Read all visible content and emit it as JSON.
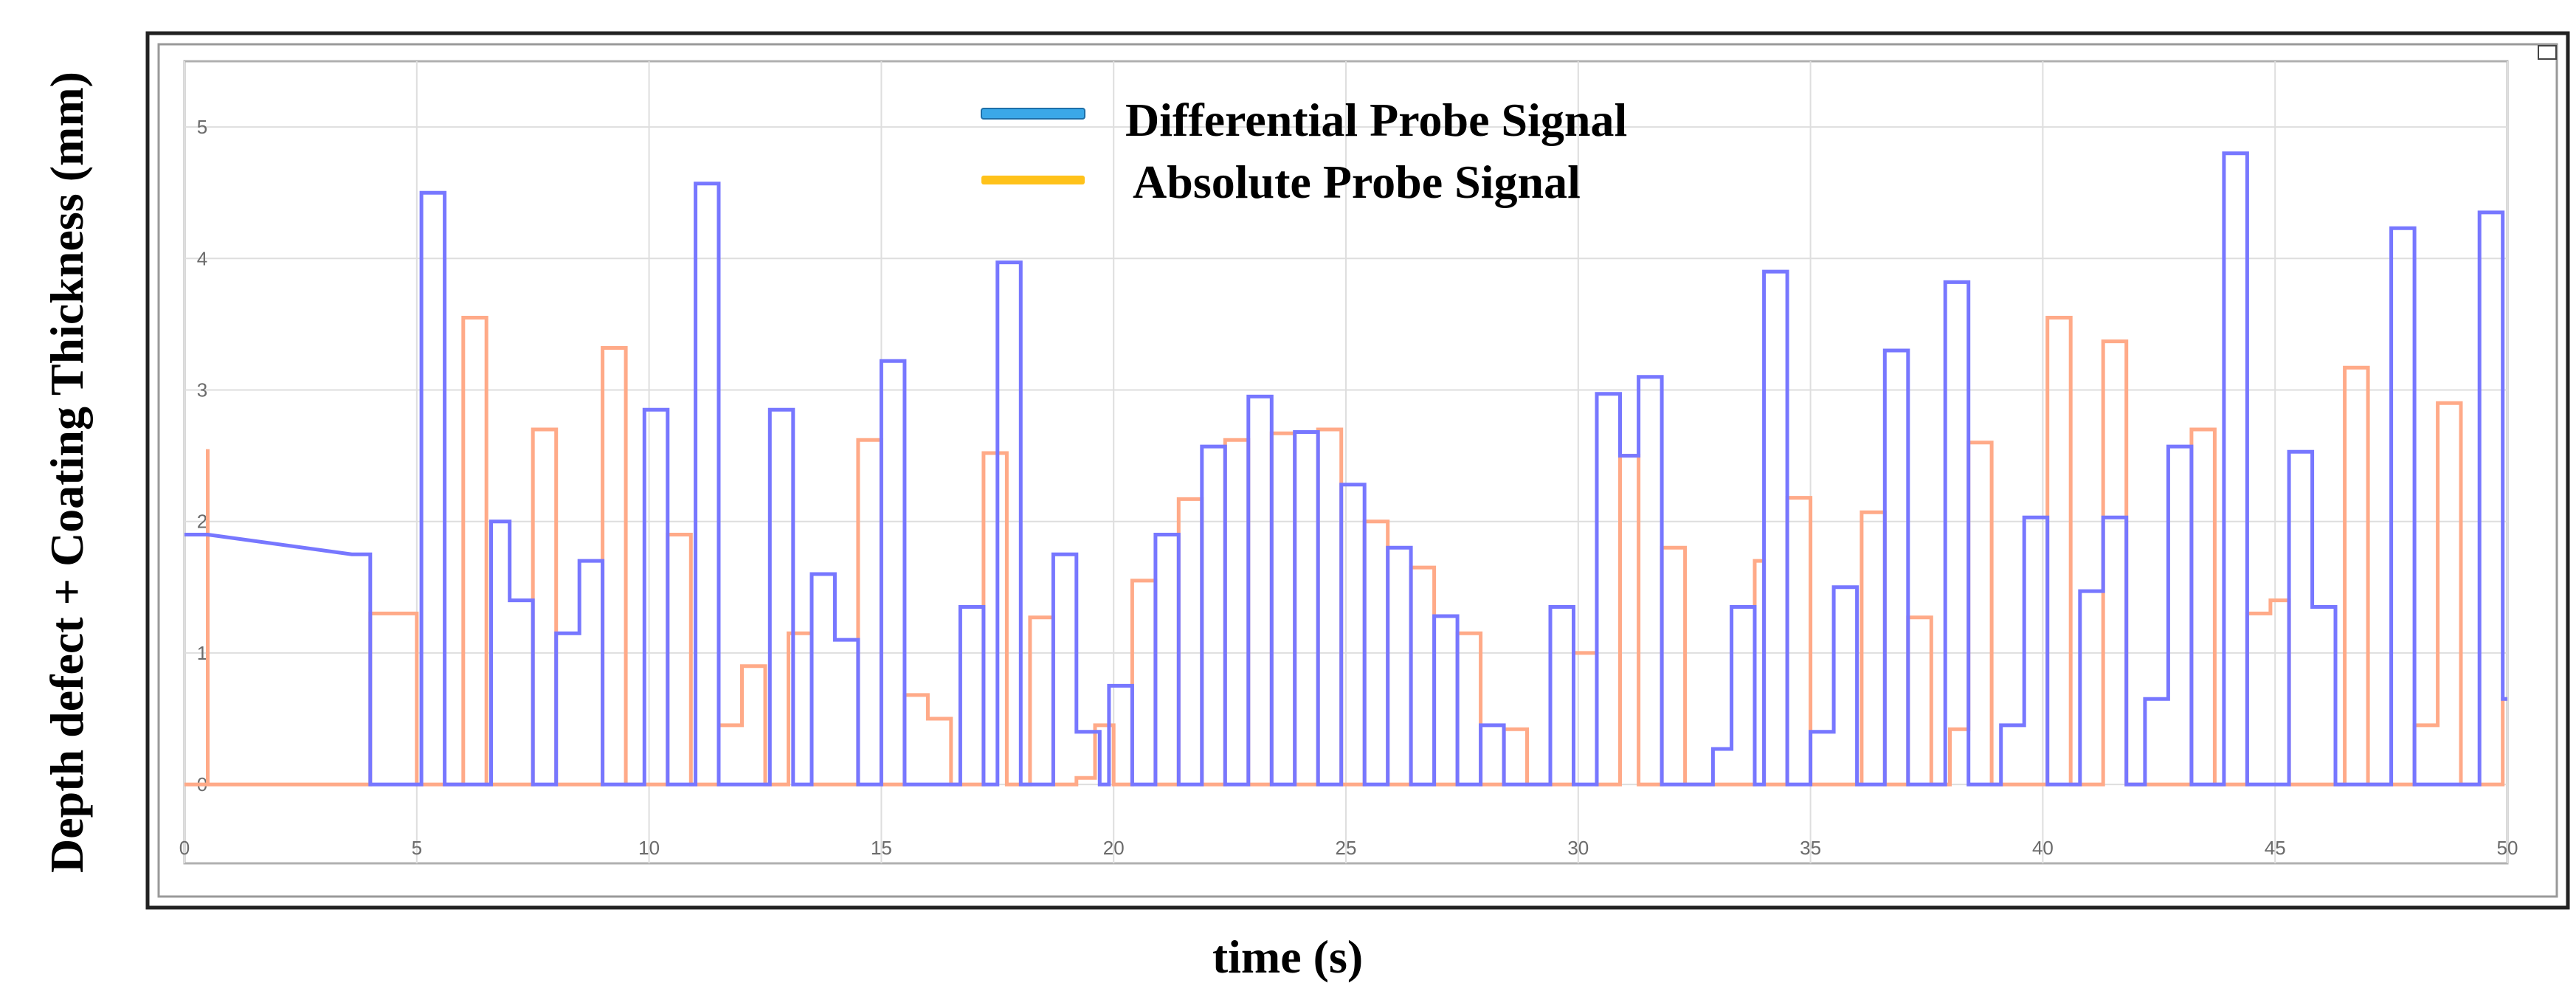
{
  "chart_data": {
    "type": "line",
    "step": true,
    "xlabel": "time (s)",
    "ylabel": "Depth defect + Coating Thickness (mm)",
    "xlim": [
      0,
      50
    ],
    "ylim": [
      -0.6,
      5.5
    ],
    "xticks": [
      0,
      5,
      10,
      15,
      20,
      25,
      30,
      35,
      40,
      45,
      50
    ],
    "yticks": [
      0,
      1,
      2,
      3,
      4,
      5
    ],
    "grid": true,
    "legend_position": "top-center",
    "series": [
      {
        "name": "Differential Probe Signal",
        "color": "#7777ff",
        "legend_color": "#3aa8e8",
        "points": [
          [
            0,
            1.9
          ],
          [
            0.5,
            1.9
          ],
          [
            3.6,
            1.75
          ],
          [
            4.0,
            1.75
          ],
          [
            4.0,
            1.3
          ],
          [
            4.0,
            0
          ],
          [
            5.1,
            0
          ],
          [
            5.1,
            4.5
          ],
          [
            5.6,
            4.5
          ],
          [
            5.6,
            0
          ],
          [
            6.6,
            0
          ],
          [
            6.6,
            2.0
          ],
          [
            7.0,
            2.0
          ],
          [
            7.0,
            1.4
          ],
          [
            7.5,
            1.4
          ],
          [
            7.5,
            0
          ],
          [
            8.0,
            0
          ],
          [
            8.0,
            1.15
          ],
          [
            8.5,
            1.15
          ],
          [
            8.5,
            1.7
          ],
          [
            9.0,
            1.7
          ],
          [
            9.0,
            0
          ],
          [
            9.9,
            0
          ],
          [
            9.9,
            2.85
          ],
          [
            10.4,
            2.85
          ],
          [
            10.4,
            0
          ],
          [
            11.0,
            0
          ],
          [
            11.0,
            4.57
          ],
          [
            11.5,
            4.57
          ],
          [
            11.5,
            0
          ],
          [
            12.6,
            0
          ],
          [
            12.6,
            2.85
          ],
          [
            13.1,
            2.85
          ],
          [
            13.1,
            0
          ],
          [
            13.5,
            0
          ],
          [
            13.5,
            1.6
          ],
          [
            14.0,
            1.6
          ],
          [
            14.0,
            1.1
          ],
          [
            14.5,
            1.1
          ],
          [
            14.5,
            0
          ],
          [
            15.0,
            0
          ],
          [
            15.0,
            3.22
          ],
          [
            15.5,
            3.22
          ],
          [
            15.5,
            0
          ],
          [
            16.7,
            0
          ],
          [
            16.7,
            1.35
          ],
          [
            17.2,
            1.35
          ],
          [
            17.2,
            0
          ],
          [
            17.5,
            0
          ],
          [
            17.5,
            3.97
          ],
          [
            18.0,
            3.97
          ],
          [
            18.0,
            0
          ],
          [
            18.7,
            0
          ],
          [
            18.7,
            1.75
          ],
          [
            19.2,
            1.75
          ],
          [
            19.2,
            0.4
          ],
          [
            19.7,
            0.4
          ],
          [
            19.7,
            0
          ],
          [
            19.9,
            0
          ],
          [
            19.9,
            0.75
          ],
          [
            20.4,
            0.75
          ],
          [
            20.4,
            0
          ],
          [
            20.9,
            0
          ],
          [
            20.9,
            1.9
          ],
          [
            21.4,
            1.9
          ],
          [
            21.4,
            0
          ],
          [
            21.9,
            0
          ],
          [
            21.9,
            2.57
          ],
          [
            22.4,
            2.57
          ],
          [
            22.4,
            0
          ],
          [
            22.9,
            0
          ],
          [
            22.9,
            2.95
          ],
          [
            23.4,
            2.95
          ],
          [
            23.4,
            0
          ],
          [
            23.9,
            0
          ],
          [
            23.9,
            2.68
          ],
          [
            24.4,
            2.68
          ],
          [
            24.4,
            0
          ],
          [
            24.9,
            0
          ],
          [
            24.9,
            2.28
          ],
          [
            25.4,
            2.28
          ],
          [
            25.4,
            0
          ],
          [
            25.9,
            0
          ],
          [
            25.9,
            1.8
          ],
          [
            26.4,
            1.8
          ],
          [
            26.4,
            0
          ],
          [
            26.9,
            0
          ],
          [
            26.9,
            1.28
          ],
          [
            27.4,
            1.28
          ],
          [
            27.4,
            0
          ],
          [
            27.9,
            0
          ],
          [
            27.9,
            0.45
          ],
          [
            28.4,
            0.45
          ],
          [
            28.4,
            0
          ],
          [
            29.4,
            0
          ],
          [
            29.4,
            1.35
          ],
          [
            29.9,
            1.35
          ],
          [
            29.9,
            0
          ],
          [
            30.4,
            0
          ],
          [
            30.4,
            2.97
          ],
          [
            30.9,
            2.97
          ],
          [
            30.9,
            2.5
          ],
          [
            31.3,
            2.5
          ],
          [
            31.3,
            3.1
          ],
          [
            31.8,
            3.1
          ],
          [
            31.8,
            0
          ],
          [
            32.9,
            0
          ],
          [
            32.9,
            0.27
          ],
          [
            33.3,
            0.27
          ],
          [
            33.3,
            1.35
          ],
          [
            33.8,
            1.35
          ],
          [
            33.8,
            0
          ],
          [
            34.0,
            0
          ],
          [
            34.0,
            3.9
          ],
          [
            34.5,
            3.9
          ],
          [
            34.5,
            0
          ],
          [
            35.0,
            0
          ],
          [
            35.0,
            0.4
          ],
          [
            35.5,
            0.4
          ],
          [
            35.5,
            1.5
          ],
          [
            36.0,
            1.5
          ],
          [
            36.0,
            0
          ],
          [
            36.6,
            0
          ],
          [
            36.6,
            3.3
          ],
          [
            37.1,
            3.3
          ],
          [
            37.1,
            0
          ],
          [
            37.9,
            0
          ],
          [
            37.9,
            3.82
          ],
          [
            38.4,
            3.82
          ],
          [
            38.4,
            0
          ],
          [
            39.1,
            0
          ],
          [
            39.1,
            0.45
          ],
          [
            39.6,
            0.45
          ],
          [
            39.6,
            2.03
          ],
          [
            40.1,
            2.03
          ],
          [
            40.1,
            0
          ],
          [
            40.8,
            0
          ],
          [
            40.8,
            1.47
          ],
          [
            41.3,
            1.47
          ],
          [
            41.3,
            2.03
          ],
          [
            41.8,
            2.03
          ],
          [
            41.8,
            0
          ],
          [
            42.2,
            0
          ],
          [
            42.2,
            0.65
          ],
          [
            42.7,
            0.65
          ],
          [
            42.7,
            2.57
          ],
          [
            43.2,
            2.57
          ],
          [
            43.2,
            0
          ],
          [
            43.9,
            0
          ],
          [
            43.9,
            4.8
          ],
          [
            44.4,
            4.8
          ],
          [
            44.4,
            0
          ],
          [
            45.3,
            0
          ],
          [
            45.3,
            2.53
          ],
          [
            45.8,
            2.53
          ],
          [
            45.8,
            1.35
          ],
          [
            46.3,
            1.35
          ],
          [
            46.3,
            0
          ],
          [
            47.5,
            0
          ],
          [
            47.5,
            4.23
          ],
          [
            48.0,
            4.23
          ],
          [
            48.0,
            0
          ],
          [
            49.4,
            0
          ],
          [
            49.4,
            4.35
          ],
          [
            49.9,
            4.35
          ],
          [
            49.9,
            0.65
          ],
          [
            50,
            0.65
          ]
        ]
      },
      {
        "name": "Absolute Probe Signal",
        "color": "#ffaa88",
        "legend_color": "#ffc21a",
        "points": [
          [
            0,
            0
          ],
          [
            0.5,
            0
          ],
          [
            0.5,
            2.55
          ],
          [
            0.5,
            0
          ],
          [
            3.6,
            0
          ],
          [
            4.0,
            0
          ],
          [
            4.0,
            1.3
          ],
          [
            5.0,
            1.3
          ],
          [
            5.0,
            0
          ],
          [
            6.0,
            0
          ],
          [
            6.0,
            3.55
          ],
          [
            6.5,
            3.55
          ],
          [
            6.5,
            0
          ],
          [
            7.5,
            0
          ],
          [
            7.5,
            2.7
          ],
          [
            8.0,
            2.7
          ],
          [
            8.0,
            0
          ],
          [
            9.0,
            0
          ],
          [
            9.0,
            3.32
          ],
          [
            9.5,
            3.32
          ],
          [
            9.5,
            0
          ],
          [
            10.4,
            0
          ],
          [
            10.4,
            1.9
          ],
          [
            10.9,
            1.9
          ],
          [
            10.9,
            0
          ],
          [
            11.5,
            0
          ],
          [
            11.5,
            0.45
          ],
          [
            12.0,
            0.45
          ],
          [
            12.0,
            0.9
          ],
          [
            12.5,
            0.9
          ],
          [
            12.5,
            0
          ],
          [
            13.0,
            0
          ],
          [
            13.0,
            1.15
          ],
          [
            13.5,
            1.15
          ],
          [
            13.5,
            0
          ],
          [
            14.5,
            0
          ],
          [
            14.5,
            2.62
          ],
          [
            15.0,
            2.62
          ],
          [
            15.0,
            0
          ],
          [
            15.5,
            0
          ],
          [
            15.5,
            0.68
          ],
          [
            16.0,
            0.68
          ],
          [
            16.0,
            0.5
          ],
          [
            16.5,
            0.5
          ],
          [
            16.5,
            0
          ],
          [
            17.2,
            0
          ],
          [
            17.2,
            2.52
          ],
          [
            17.7,
            2.52
          ],
          [
            17.7,
            0
          ],
          [
            18.2,
            0
          ],
          [
            18.2,
            1.27
          ],
          [
            18.7,
            1.27
          ],
          [
            18.7,
            0
          ],
          [
            19.2,
            0
          ],
          [
            19.2,
            0.05
          ],
          [
            19.6,
            0.05
          ],
          [
            19.6,
            0.45
          ],
          [
            20.0,
            0.45
          ],
          [
            20.0,
            0
          ],
          [
            20.4,
            0
          ],
          [
            20.4,
            1.55
          ],
          [
            20.9,
            1.55
          ],
          [
            20.9,
            0
          ],
          [
            21.4,
            0
          ],
          [
            21.4,
            2.17
          ],
          [
            21.9,
            2.17
          ],
          [
            21.9,
            0
          ],
          [
            22.4,
            0
          ],
          [
            22.4,
            2.62
          ],
          [
            22.9,
            2.62
          ],
          [
            22.9,
            0
          ],
          [
            23.4,
            0
          ],
          [
            23.4,
            2.67
          ],
          [
            23.9,
            2.67
          ],
          [
            23.9,
            0
          ],
          [
            24.4,
            0
          ],
          [
            24.4,
            2.7
          ],
          [
            24.9,
            2.7
          ],
          [
            24.9,
            0
          ],
          [
            25.4,
            0
          ],
          [
            25.4,
            2.0
          ],
          [
            25.9,
            2.0
          ],
          [
            25.9,
            0
          ],
          [
            26.4,
            0
          ],
          [
            26.4,
            1.65
          ],
          [
            26.9,
            1.65
          ],
          [
            26.9,
            0
          ],
          [
            27.4,
            0
          ],
          [
            27.4,
            1.15
          ],
          [
            27.9,
            1.15
          ],
          [
            27.9,
            0
          ],
          [
            28.4,
            0
          ],
          [
            28.4,
            0.42
          ],
          [
            28.9,
            0.42
          ],
          [
            28.9,
            0
          ],
          [
            29.9,
            0
          ],
          [
            29.9,
            1.0
          ],
          [
            30.4,
            1.0
          ],
          [
            30.4,
            0
          ],
          [
            30.9,
            0
          ],
          [
            30.9,
            2.5
          ],
          [
            31.3,
            2.5
          ],
          [
            31.3,
            0
          ],
          [
            31.8,
            0
          ],
          [
            31.8,
            1.8
          ],
          [
            32.3,
            1.8
          ],
          [
            32.3,
            0
          ],
          [
            33.8,
            0
          ],
          [
            33.8,
            1.7
          ],
          [
            34.0,
            1.7
          ],
          [
            34.0,
            0
          ],
          [
            34.5,
            0
          ],
          [
            34.5,
            2.18
          ],
          [
            35.0,
            2.18
          ],
          [
            35.0,
            0
          ],
          [
            36.1,
            0
          ],
          [
            36.1,
            2.07
          ],
          [
            36.6,
            2.07
          ],
          [
            36.6,
            0
          ],
          [
            37.1,
            0
          ],
          [
            37.1,
            1.27
          ],
          [
            37.6,
            1.27
          ],
          [
            37.6,
            0
          ],
          [
            38.0,
            0
          ],
          [
            38.0,
            0.42
          ],
          [
            38.4,
            0.42
          ],
          [
            38.4,
            2.6
          ],
          [
            38.9,
            2.6
          ],
          [
            38.9,
            0
          ],
          [
            40.1,
            0
          ],
          [
            40.1,
            3.55
          ],
          [
            40.6,
            3.55
          ],
          [
            40.6,
            0
          ],
          [
            41.3,
            0
          ],
          [
            41.3,
            3.37
          ],
          [
            41.8,
            3.37
          ],
          [
            41.8,
            0
          ],
          [
            43.2,
            0
          ],
          [
            43.2,
            2.7
          ],
          [
            43.7,
            2.7
          ],
          [
            43.7,
            0
          ],
          [
            44.4,
            0
          ],
          [
            44.4,
            1.3
          ],
          [
            44.9,
            1.3
          ],
          [
            44.9,
            1.4
          ],
          [
            45.3,
            1.4
          ],
          [
            45.3,
            0
          ],
          [
            46.5,
            0
          ],
          [
            46.5,
            3.17
          ],
          [
            47.0,
            3.17
          ],
          [
            47.0,
            0
          ],
          [
            48.0,
            0
          ],
          [
            48.0,
            0.45
          ],
          [
            48.5,
            0.45
          ],
          [
            48.5,
            2.9
          ],
          [
            49.0,
            2.9
          ],
          [
            49.0,
            0
          ],
          [
            49.9,
            0
          ],
          [
            49.9,
            0.65
          ],
          [
            50,
            0.65
          ]
        ]
      }
    ]
  }
}
